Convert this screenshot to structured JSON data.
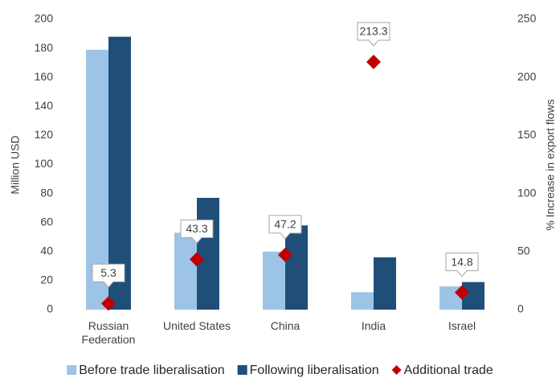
{
  "chart_data": {
    "type": "bar",
    "categories": [
      "Russian Federation",
      "United States",
      "China",
      "India",
      "Israel"
    ],
    "y_label": "Million USD",
    "y2_label": "% Increase in export flows",
    "ylim": [
      0,
      200
    ],
    "yticks": [
      0,
      20,
      40,
      60,
      80,
      100,
      120,
      140,
      160,
      180,
      200
    ],
    "y2lim": [
      0,
      250
    ],
    "y2ticks": [
      0,
      50,
      100,
      150,
      200,
      250
    ],
    "series": [
      {
        "name": "Before trade liberalisation",
        "color": "#9dc3e6",
        "values": [
          179,
          53,
          40,
          12,
          16
        ]
      },
      {
        "name": "Following liberalisation",
        "color": "#1f4e79",
        "values": [
          188,
          77,
          58,
          36,
          19
        ]
      },
      {
        "name": "Additional trade",
        "color": "#c00000",
        "axis": "y2",
        "values": [
          5.3,
          43.3,
          47.2,
          213.3,
          14.8
        ]
      }
    ],
    "legend": "bottom"
  }
}
